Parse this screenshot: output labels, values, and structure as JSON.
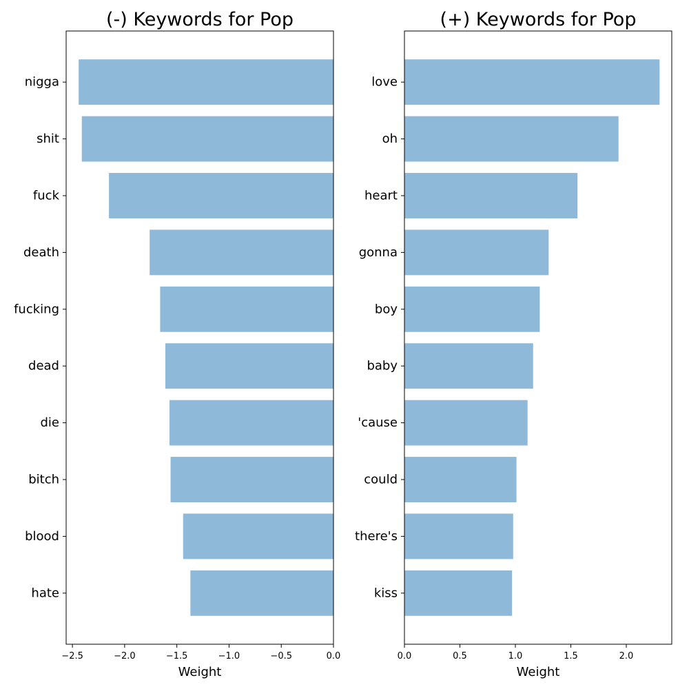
{
  "chart_data": [
    {
      "type": "bar",
      "orientation": "horizontal",
      "title": "(-) Keywords for Pop",
      "xlabel": "Weight",
      "ylabel": "",
      "categories": [
        "nigga",
        "shit",
        "fuck",
        "death",
        "fucking",
        "dead",
        "die",
        "bitch",
        "blood",
        "hate"
      ],
      "values": [
        -2.44,
        -2.41,
        -2.15,
        -1.76,
        -1.66,
        -1.61,
        -1.57,
        -1.56,
        -1.44,
        -1.37
      ],
      "xlim": [
        -2.56,
        0.0
      ],
      "xticks": [
        -2.5,
        -2.0,
        -1.5,
        -1.0,
        -0.5,
        0.0
      ],
      "xtick_labels": [
        "−2.5",
        "−2.0",
        "−1.5",
        "−1.0",
        "−0.5",
        "0.0"
      ],
      "color": "#8fb9d9",
      "grid": false
    },
    {
      "type": "bar",
      "orientation": "horizontal",
      "title": "(+) Keywords for Pop",
      "xlabel": "Weight",
      "ylabel": "",
      "categories": [
        "love",
        "oh",
        "heart",
        "gonna",
        "boy",
        "baby",
        "'cause",
        "could",
        "there's",
        "kiss"
      ],
      "values": [
        2.3,
        1.93,
        1.56,
        1.3,
        1.22,
        1.16,
        1.11,
        1.01,
        0.98,
        0.97
      ],
      "xlim": [
        0.0,
        2.41
      ],
      "xticks": [
        0.0,
        0.5,
        1.0,
        1.5,
        2.0
      ],
      "xtick_labels": [
        "0.0",
        "0.5",
        "1.0",
        "1.5",
        "2.0"
      ],
      "color": "#8fb9d9",
      "grid": false
    }
  ]
}
